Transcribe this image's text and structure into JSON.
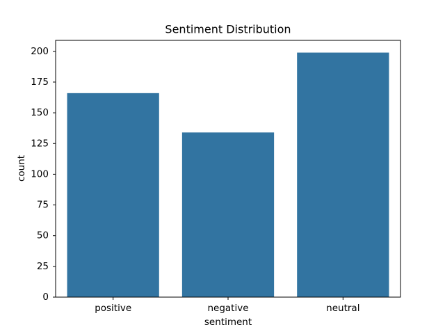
{
  "chart_data": {
    "type": "bar",
    "title": "Sentiment Distribution",
    "x_label": "sentiment",
    "y_label": "count",
    "categories": [
      "positive",
      "negative",
      "neutral"
    ],
    "values": [
      166,
      134,
      199
    ],
    "color": "#3274a1",
    "ylim": [
      0,
      208.95
    ],
    "yticks": [
      0,
      25,
      50,
      75,
      100,
      125,
      150,
      175,
      200
    ],
    "grid": false
  }
}
